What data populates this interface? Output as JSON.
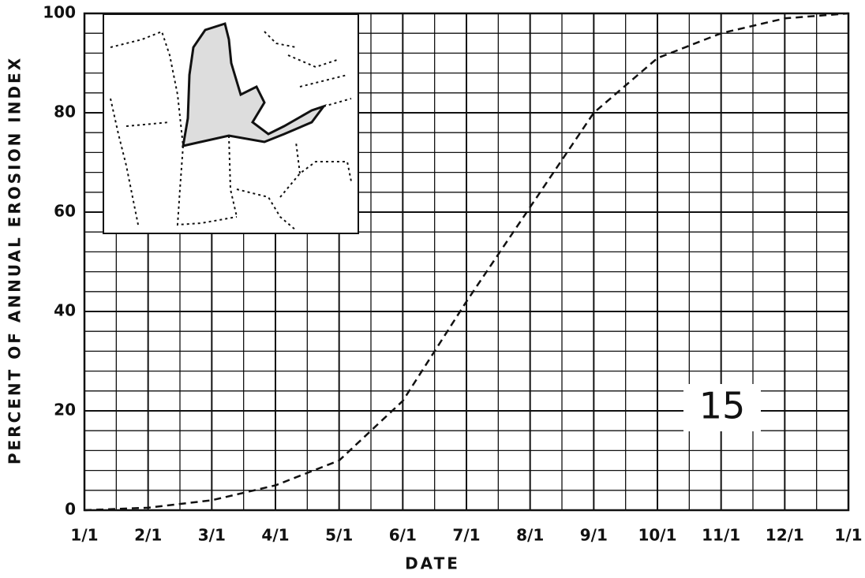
{
  "chart_data": {
    "type": "line",
    "ylabel": "PERCENT OF ANNUAL EROSION INDEX",
    "xlabel": "DATE",
    "annotation": "15",
    "categories": [
      "1/1",
      "2/1",
      "3/1",
      "4/1",
      "5/1",
      "6/1",
      "7/1",
      "8/1",
      "9/1",
      "10/1",
      "11/1",
      "12/1",
      "1/1"
    ],
    "series": [
      {
        "color": "#111111",
        "values": [
          0,
          0.5,
          2,
          5,
          10,
          22,
          42,
          61,
          80,
          91,
          96,
          99,
          100
        ]
      }
    ],
    "ylim": [
      0,
      100
    ],
    "yticks": [
      0,
      20,
      40,
      60,
      80,
      100
    ],
    "yminor": [
      4,
      8,
      12,
      16,
      24,
      28,
      32,
      36,
      44,
      48,
      52,
      56,
      64,
      68,
      72,
      76,
      84,
      88,
      92,
      96
    ],
    "grid": true
  }
}
